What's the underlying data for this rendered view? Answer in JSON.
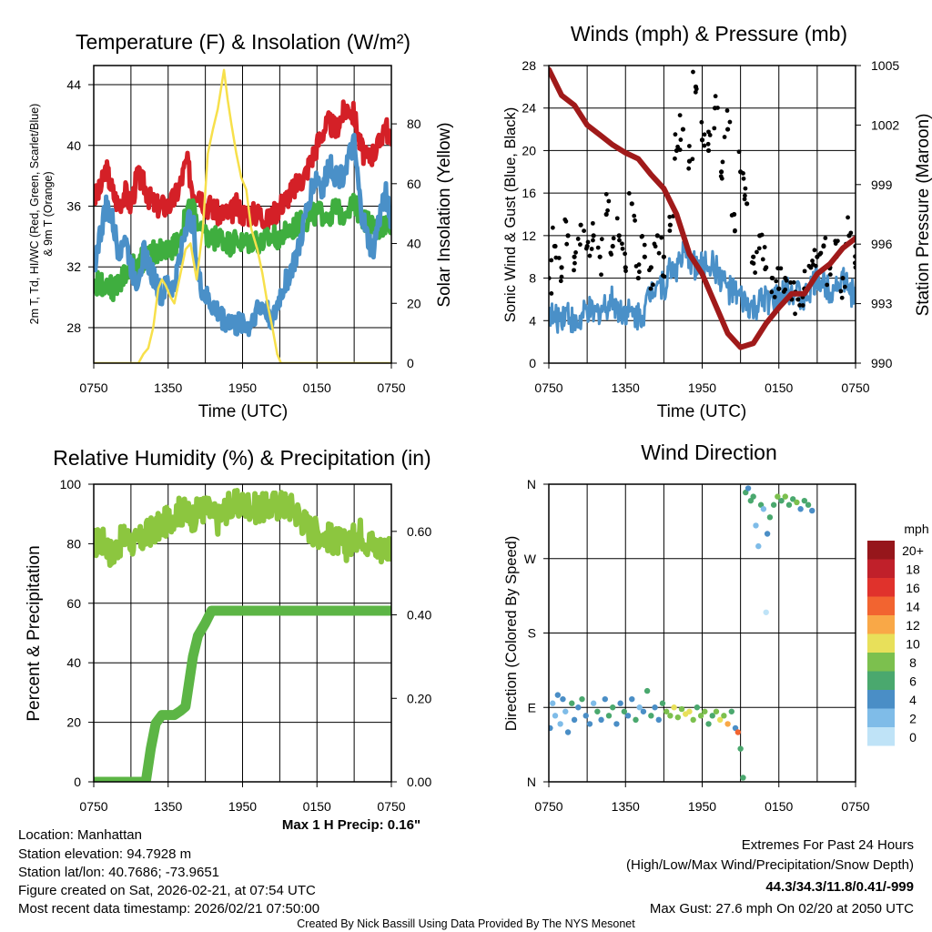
{
  "colors": {
    "temp": "#d42027",
    "dewpoint": "#3fae3f",
    "windchill": "#4a90c8",
    "insolation": "#f7e04b",
    "wind": "#4a90c8",
    "gust": "#000000",
    "pressure": "#a01a1a",
    "rh": "#8cc63f",
    "precip": "#5cb545",
    "precip_text": "#2a9a2a",
    "extremes": "#d42027",
    "credit": "#999999"
  },
  "chart_data": [
    {
      "type": "line",
      "title": "Temperature (F) & Insolation (W/m²)",
      "xlabel": "Time (UTC)",
      "ylabel_line1": "2m T, Td, HI/WC (Red, Green, Scarlet/Blue)",
      "ylabel_line2": "& 9m T (Orange)",
      "ylabel_right": "Solar Insolation (Yellow)",
      "x_ticks": [
        "0750",
        "1350",
        "1950",
        "0150",
        "0750"
      ],
      "x_unit": "hours since 0750 UTC",
      "xlim": [
        0,
        24
      ],
      "ylim": [
        25.66,
        45.26
      ],
      "y_ticks": [
        28,
        32,
        36,
        40,
        44
      ],
      "ylim_right": [
        0,
        99.5
      ],
      "y_ticks_right": [
        0,
        20,
        40,
        60,
        80
      ],
      "grid": true,
      "series": [
        {
          "name": "2m T",
          "color_key": "temp",
          "x_step": 0.5,
          "values": [
            36.5,
            37,
            38.5,
            37,
            36,
            37,
            36,
            38,
            37.5,
            36.5,
            36,
            36,
            36,
            36.5,
            37.5,
            39,
            37,
            37,
            36,
            36,
            35.5,
            35.5,
            35.5,
            36,
            35.5,
            35.5,
            35.5,
            35.5,
            35,
            35.5,
            36,
            36.5,
            37,
            37.5,
            38,
            39,
            40,
            41,
            41.5,
            41,
            42,
            42.5,
            42,
            40,
            39,
            39.5,
            40,
            41.5,
            40
          ]
        },
        {
          "name": "Td",
          "color_key": "dewpoint",
          "x_step": 0.5,
          "values": [
            31,
            30.8,
            31,
            30.5,
            31,
            31.5,
            32,
            32.3,
            32.5,
            32.8,
            33,
            33.2,
            33,
            33.5,
            34,
            35.5,
            36,
            34.5,
            34,
            33.8,
            34,
            33.8,
            33.5,
            33.8,
            33.5,
            33.6,
            33.8,
            33.5,
            33.8,
            34,
            34,
            34.2,
            34.5,
            34.8,
            35,
            35.3,
            35.5,
            35.5,
            35.5,
            35.8,
            35.5,
            36,
            36,
            35.5,
            35,
            34.5,
            34.5,
            34.8,
            35
          ]
        },
        {
          "name": "HI/WC",
          "color_key": "windchill",
          "x_step": 0.5,
          "values": [
            32,
            34,
            36,
            35,
            33,
            34,
            32,
            31,
            33,
            32,
            31,
            30,
            31,
            30.5,
            33,
            35,
            35,
            31,
            30,
            29.5,
            29,
            28.5,
            28.5,
            28,
            28.5,
            28,
            29,
            29.5,
            29,
            28.5,
            30,
            31,
            32,
            33,
            35,
            37,
            38,
            37,
            39,
            38,
            38,
            39,
            40,
            36,
            34,
            33,
            35,
            37,
            35
          ]
        },
        {
          "name": "Solar Insolation",
          "axis": "right",
          "color_key": "insolation",
          "points": [
            [
              0,
              0
            ],
            [
              3.6,
              0
            ],
            [
              4,
              3
            ],
            [
              4.4,
              5
            ],
            [
              4.8,
              12
            ],
            [
              5.2,
              25
            ],
            [
              5.5,
              28
            ],
            [
              5.8,
              26
            ],
            [
              6.2,
              22
            ],
            [
              6.5,
              20
            ],
            [
              6.9,
              28
            ],
            [
              7.4,
              38
            ],
            [
              7.8,
              40
            ],
            [
              8.3,
              28
            ],
            [
              8.8,
              45
            ],
            [
              9.2,
              70
            ],
            [
              9.6,
              78
            ],
            [
              10,
              85
            ],
            [
              10.5,
              98
            ],
            [
              10.8,
              88
            ],
            [
              11.1,
              80
            ],
            [
              11.5,
              70
            ],
            [
              11.9,
              62
            ],
            [
              12.3,
              58
            ],
            [
              12.7,
              45
            ],
            [
              13.2,
              38
            ],
            [
              13.6,
              30
            ],
            [
              14,
              20
            ],
            [
              14.4,
              12
            ],
            [
              14.8,
              3
            ],
            [
              15.1,
              0
            ],
            [
              24,
              0
            ]
          ]
        }
      ]
    },
    {
      "type": "line",
      "title": "Winds (mph) & Pressure (mb)",
      "xlabel": "Time (UTC)",
      "ylabel": "Sonic Wind & Gust (Blue, Black)",
      "ylabel_right": "Station Pressure (Maroon)",
      "x_ticks": [
        "0750",
        "1350",
        "1950",
        "0150",
        "0750"
      ],
      "xlim": [
        0,
        24
      ],
      "ylim": [
        0,
        28
      ],
      "y_ticks": [
        0,
        4,
        8,
        12,
        16,
        20,
        24,
        28
      ],
      "ylim_right": [
        990,
        1005
      ],
      "y_ticks_right": [
        990,
        993,
        996,
        999,
        1002,
        1005
      ],
      "grid": true,
      "series": [
        {
          "name": "Sonic Wind",
          "color_key": "wind",
          "x_step": 0.5,
          "values": [
            5,
            4,
            4.5,
            5,
            3.5,
            4,
            5,
            4.5,
            5,
            5.5,
            6,
            5,
            5,
            4.5,
            4.5,
            5,
            7,
            8,
            7,
            9,
            9,
            10,
            10,
            9,
            9,
            9.5,
            9,
            8,
            7,
            6.5,
            6,
            5.5,
            5,
            5.5,
            6,
            6,
            6,
            6.5,
            7,
            6.5,
            6,
            7,
            8,
            7.5,
            7,
            7.5,
            8,
            7,
            6
          ]
        },
        {
          "name": "Gust",
          "type": "scatter",
          "color_key": "gust",
          "x_step": 0.5,
          "values": [
            8,
            11,
            9,
            12,
            10,
            13,
            11,
            12,
            10,
            14,
            11,
            12,
            9,
            15,
            8,
            10,
            9,
            12,
            10,
            13,
            20,
            22,
            19,
            26,
            21,
            20,
            24,
            18,
            22,
            14,
            18,
            15,
            10,
            12,
            9,
            8,
            7,
            8,
            6,
            6,
            7,
            9,
            10,
            11,
            9,
            10,
            8,
            12,
            11
          ]
        },
        {
          "name": "Station Pressure",
          "axis": "right",
          "color_key": "pressure",
          "x_step": 1,
          "values": [
            1004.8,
            1003.5,
            1003,
            1002,
            1001.5,
            1001,
            1000.6,
            1000.3,
            999.5,
            998.8,
            997.5,
            995.5,
            994.5,
            993,
            991.5,
            990.8,
            991,
            992,
            992.8,
            993.5,
            993.5,
            994.5,
            995,
            995.8,
            996.3
          ]
        }
      ]
    },
    {
      "type": "line",
      "title": "Relative Humidity (%) & Precipitation (in)",
      "ylabel": "Percent & Precipitation",
      "x_ticks": [
        "0750",
        "1350",
        "1950",
        "0150",
        "0750"
      ],
      "xlim": [
        0,
        24
      ],
      "ylim": [
        0,
        100
      ],
      "y_ticks": [
        0,
        20,
        40,
        60,
        80,
        100
      ],
      "ylim_right": [
        0,
        0.713
      ],
      "y_ticks_right": [
        "0.00",
        "0.20",
        "0.40",
        "0.60"
      ],
      "grid": true,
      "annotation": "Max 1 H Precip: 0.16\"",
      "series": [
        {
          "name": "Relative Humidity",
          "color_key": "rh",
          "x_step": 0.5,
          "values": [
            80,
            81,
            80,
            76,
            80,
            82,
            81,
            80,
            82,
            84,
            85,
            86,
            88,
            90,
            91,
            90,
            89,
            91,
            92,
            90,
            88,
            91,
            93,
            93,
            93,
            93,
            92,
            92,
            92,
            93,
            93,
            93,
            92,
            90,
            87,
            85,
            84,
            83,
            82,
            81,
            80,
            79,
            82,
            84,
            81,
            80,
            78,
            79,
            80
          ]
        },
        {
          "name": "Precipitation",
          "axis": "right",
          "color_key": "precip",
          "points": [
            [
              0,
              0
            ],
            [
              4.2,
              0
            ],
            [
              4.6,
              0.08
            ],
            [
              5,
              0.14
            ],
            [
              5.5,
              0.16
            ],
            [
              6.5,
              0.16
            ],
            [
              7,
              0.17
            ],
            [
              7.4,
              0.18
            ],
            [
              8,
              0.3
            ],
            [
              8.4,
              0.35
            ],
            [
              9,
              0.38
            ],
            [
              9.5,
              0.41
            ],
            [
              24,
              0.41
            ]
          ]
        }
      ]
    },
    {
      "type": "scatter",
      "title": "Wind Direction",
      "ylabel": "Direction (Colored By Speed)",
      "x_ticks": [
        "0750",
        "1350",
        "1950",
        "0150",
        "0750"
      ],
      "xlim": [
        0,
        24
      ],
      "ylim": [
        0,
        360
      ],
      "y_ticks": [
        "N",
        "E",
        "S",
        "W",
        "N"
      ],
      "legend": {
        "title": "mph",
        "position": "right",
        "labels": [
          "20+",
          "18",
          "16",
          "14",
          "12",
          "10",
          "8",
          "6",
          "4",
          "2",
          "0"
        ],
        "colors": [
          "#96161b",
          "#c0202a",
          "#e0322c",
          "#f26430",
          "#f9a847",
          "#e8e05a",
          "#7cc04e",
          "#4aa86e",
          "#4a8ec6",
          "#7fbce8",
          "#bfe3f7"
        ]
      },
      "points": [
        [
          0.1,
          65,
          5
        ],
        [
          0.3,
          95,
          3
        ],
        [
          0.5,
          80,
          2
        ],
        [
          0.7,
          105,
          4
        ],
        [
          0.9,
          70,
          3
        ],
        [
          1.1,
          100,
          5
        ],
        [
          1.3,
          85,
          2
        ],
        [
          1.5,
          60,
          4
        ],
        [
          1.8,
          95,
          6
        ],
        [
          2.0,
          75,
          4
        ],
        [
          2.3,
          90,
          5
        ],
        [
          2.6,
          100,
          6
        ],
        [
          2.9,
          80,
          5
        ],
        [
          3.2,
          70,
          4
        ],
        [
          3.5,
          95,
          3
        ],
        [
          3.8,
          85,
          6
        ],
        [
          4.1,
          75,
          5
        ],
        [
          4.4,
          100,
          4
        ],
        [
          4.7,
          80,
          7
        ],
        [
          5.0,
          90,
          6
        ],
        [
          5.3,
          70,
          4
        ],
        [
          5.6,
          95,
          5
        ],
        [
          5.9,
          85,
          6
        ],
        [
          6.2,
          80,
          4
        ],
        [
          6.5,
          100,
          5
        ],
        [
          6.8,
          75,
          6
        ],
        [
          7.1,
          90,
          3
        ],
        [
          7.4,
          85,
          5
        ],
        [
          7.7,
          110,
          6
        ],
        [
          8.0,
          80,
          7
        ],
        [
          8.3,
          90,
          4
        ],
        [
          8.6,
          75,
          5
        ],
        [
          8.9,
          95,
          7
        ],
        [
          9.2,
          85,
          8
        ],
        [
          9.5,
          80,
          9
        ],
        [
          9.8,
          90,
          10
        ],
        [
          10.1,
          78,
          8
        ],
        [
          10.4,
          88,
          9
        ],
        [
          10.7,
          82,
          10
        ],
        [
          11.0,
          85,
          11
        ],
        [
          11.3,
          75,
          8
        ],
        [
          11.6,
          90,
          7
        ],
        [
          11.9,
          80,
          9
        ],
        [
          12.2,
          85,
          8
        ],
        [
          12.5,
          70,
          6
        ],
        [
          12.8,
          80,
          7
        ],
        [
          13.1,
          85,
          9
        ],
        [
          13.4,
          75,
          10
        ],
        [
          13.7,
          80,
          8
        ],
        [
          14.0,
          70,
          12
        ],
        [
          14.3,
          85,
          6
        ],
        [
          14.6,
          65,
          5
        ],
        [
          14.8,
          60,
          14
        ],
        [
          15.0,
          40,
          6
        ],
        [
          15.2,
          5,
          6
        ],
        [
          15.4,
          350,
          6
        ],
        [
          15.6,
          355,
          5
        ],
        [
          15.8,
          340,
          7
        ],
        [
          16.0,
          345,
          6
        ],
        [
          16.2,
          310,
          2
        ],
        [
          16.4,
          285,
          2
        ],
        [
          16.6,
          335,
          6
        ],
        [
          16.8,
          330,
          3
        ],
        [
          17.0,
          205,
          1
        ],
        [
          17.1,
          300,
          4
        ],
        [
          17.3,
          320,
          6
        ],
        [
          17.6,
          335,
          7
        ],
        [
          17.9,
          345,
          8
        ],
        [
          18.2,
          340,
          6
        ],
        [
          18.5,
          345,
          8
        ],
        [
          18.8,
          335,
          7
        ],
        [
          19.1,
          342,
          6
        ],
        [
          19.4,
          338,
          8
        ],
        [
          19.7,
          330,
          5
        ],
        [
          20.0,
          340,
          7
        ],
        [
          20.3,
          335,
          6
        ],
        [
          20.6,
          328,
          5
        ]
      ]
    }
  ],
  "info": {
    "location": "Location: Manhattan",
    "elevation": "Station elevation: 94.7928 m",
    "latlon": "Station lat/lon: 40.7686; -73.9651",
    "created": "Figure created on Sat, 2026-02-21, at 07:54 UTC",
    "recent": "Most recent data timestamp: 2026/02/21 07:50:00"
  },
  "extremes": {
    "heading": "Extremes For Past 24 Hours",
    "subheading": "(High/Low/Max Wind/Precipitation/Snow Depth)",
    "values": "44.3/34.3/11.8/0.41/-999",
    "max_gust": "Max Gust: 27.6 mph On 02/20 at 2050 UTC"
  },
  "credit": "Created By Nick Bassill Using Data Provided By The NYS Mesonet"
}
